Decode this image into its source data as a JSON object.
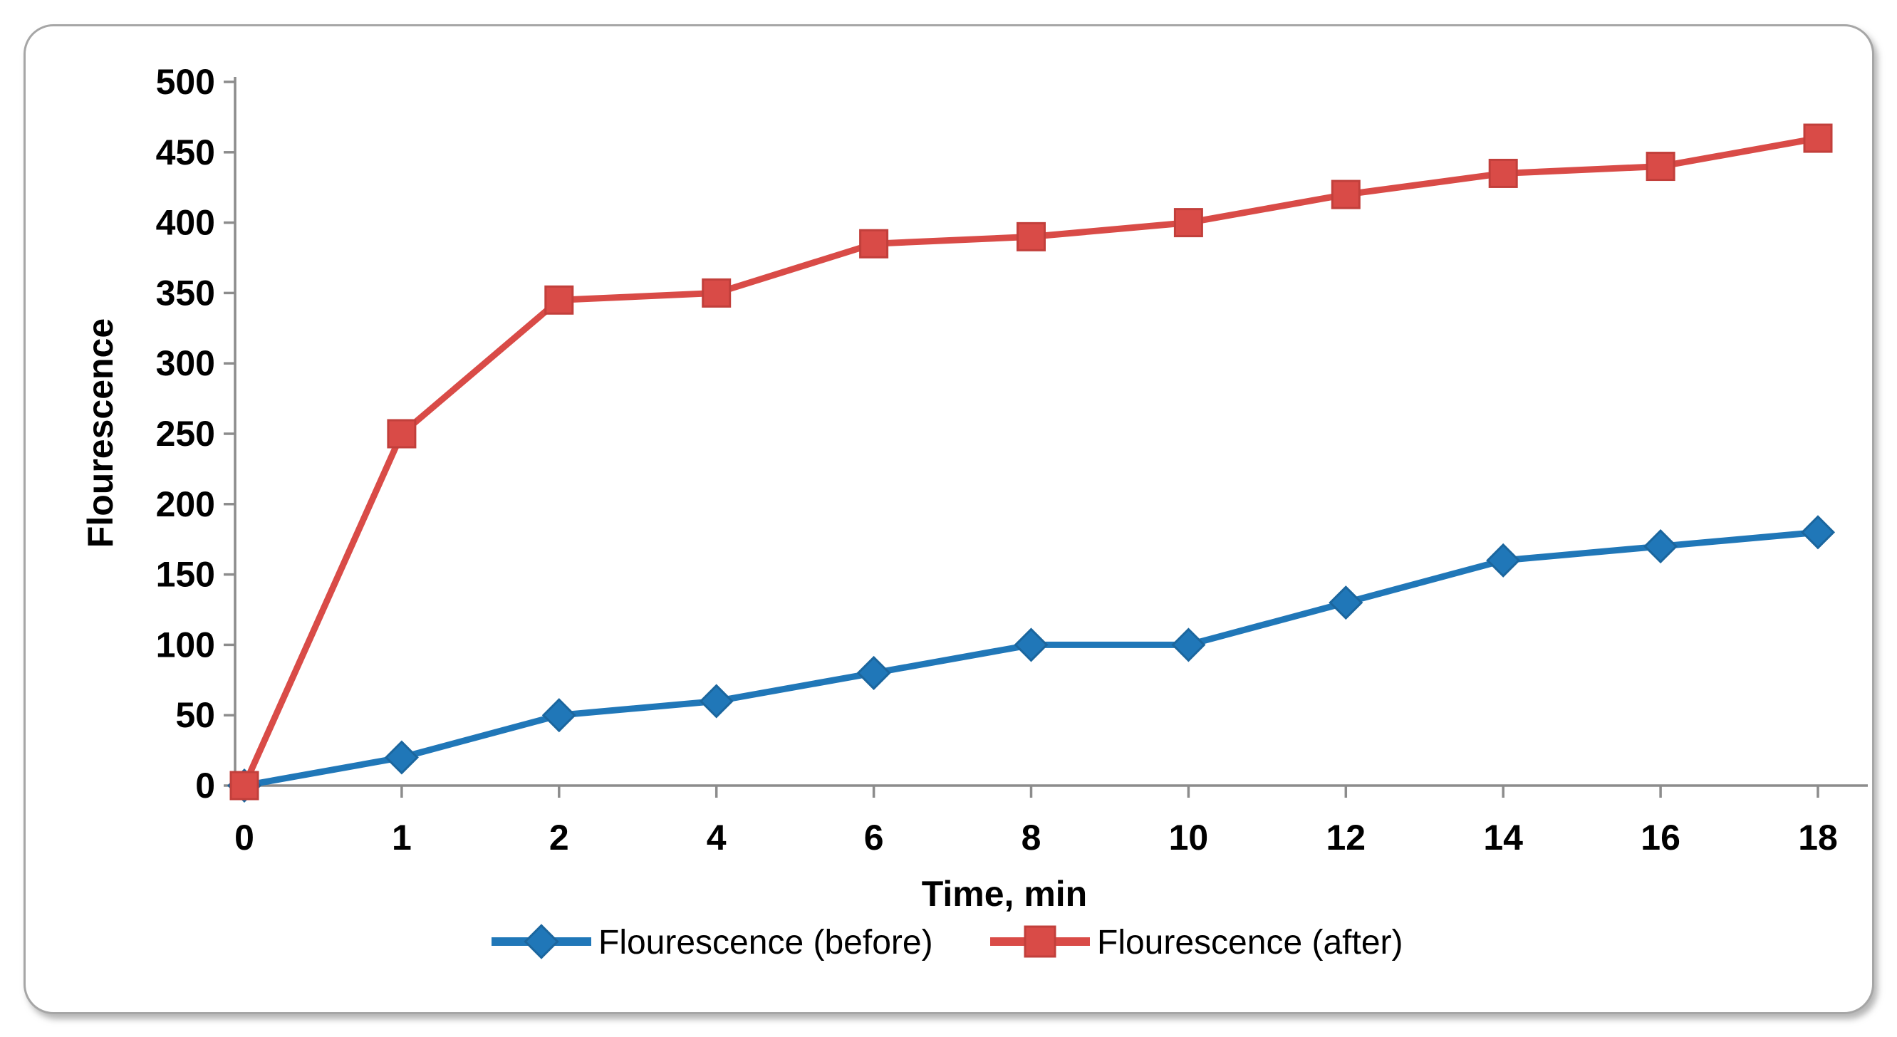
{
  "frame": {
    "background": "#ffffff",
    "border_color": "#a6a6a6"
  },
  "chart_data": {
    "type": "line",
    "title": "",
    "xlabel": "Time, min",
    "ylabel": "Flourescence",
    "categories": [
      "0",
      "1",
      "2",
      "4",
      "6",
      "8",
      "10",
      "12",
      "14",
      "16",
      "18"
    ],
    "y_ticks": [
      "0",
      "50",
      "100",
      "150",
      "200",
      "250",
      "300",
      "350",
      "400",
      "450",
      "500"
    ],
    "ylim": [
      0,
      500
    ],
    "grid": false,
    "legend_position": "bottom",
    "axis_color": "#8c8c8c",
    "text_color": "#000000",
    "series": [
      {
        "name": "Flourescence (before)",
        "marker": "diamond",
        "color": "#2077b8",
        "marker_edge": "#1b669e",
        "values": [
          0,
          20,
          50,
          60,
          80,
          100,
          100,
          130,
          160,
          170,
          180
        ]
      },
      {
        "name": "Flourescence (after)",
        "marker": "square",
        "color": "#d94b47",
        "marker_edge": "#c23f3b",
        "values": [
          0,
          250,
          345,
          350,
          385,
          390,
          400,
          420,
          435,
          440,
          460
        ]
      }
    ]
  }
}
